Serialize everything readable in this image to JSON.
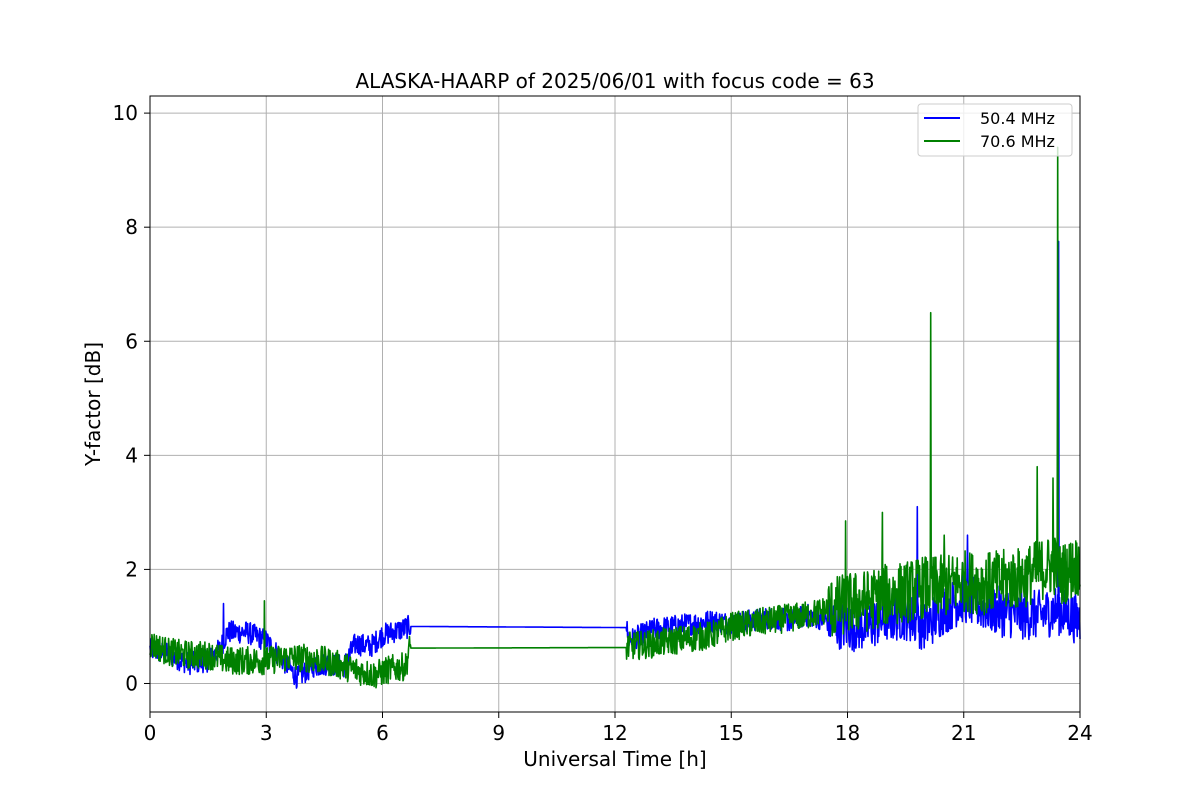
{
  "chart_data": {
    "type": "line",
    "title": "ALASKA-HAARP of 2025/06/01 with focus code = 63",
    "xlabel": "Universal Time [h]",
    "ylabel": "Y-factor [dB]",
    "xlim": [
      0,
      24
    ],
    "ylim": [
      -0.5,
      10.3
    ],
    "xticks": [
      0,
      3,
      6,
      9,
      12,
      15,
      18,
      21,
      24
    ],
    "yticks": [
      0,
      2,
      4,
      6,
      8,
      10
    ],
    "grid": true,
    "legend_position": "top-right",
    "series": [
      {
        "name": "50.4 MHz",
        "color": "#0000ff",
        "points": [
          [
            0,
            0.6
          ],
          [
            0.5,
            0.5
          ],
          [
            1.0,
            0.35
          ],
          [
            1.5,
            0.4
          ],
          [
            1.8,
            0.6
          ],
          [
            2.0,
            0.9
          ],
          [
            2.5,
            0.9
          ],
          [
            3.0,
            0.75
          ],
          [
            3.5,
            0.35
          ],
          [
            3.8,
            0.1
          ],
          [
            4.2,
            0.3
          ],
          [
            4.6,
            0.35
          ],
          [
            5.0,
            0.3
          ],
          [
            5.3,
            0.7
          ],
          [
            5.7,
            0.65
          ],
          [
            6.0,
            0.85
          ],
          [
            6.5,
            0.95
          ],
          [
            6.7,
            1.0
          ],
          [
            12.3,
            0.98
          ],
          [
            12.35,
            0.75
          ],
          [
            13.0,
            0.95
          ],
          [
            13.5,
            1.0
          ],
          [
            14.0,
            1.05
          ],
          [
            14.5,
            1.1
          ],
          [
            15.0,
            1.05
          ],
          [
            15.5,
            1.1
          ],
          [
            16.0,
            1.15
          ],
          [
            16.5,
            1.1
          ],
          [
            17.0,
            1.2
          ],
          [
            17.5,
            1.1
          ],
          [
            18.0,
            1.0
          ],
          [
            18.5,
            1.0
          ],
          [
            19.0,
            1.15
          ],
          [
            19.5,
            1.2
          ],
          [
            20.0,
            1.0
          ],
          [
            20.5,
            1.3
          ],
          [
            21.0,
            1.5
          ],
          [
            21.5,
            1.35
          ],
          [
            22.0,
            1.25
          ],
          [
            22.5,
            1.2
          ],
          [
            23.0,
            1.2
          ],
          [
            23.4,
            1.3
          ],
          [
            24.0,
            1.1
          ]
        ],
        "spikes": [
          [
            1.9,
            1.4
          ],
          [
            19.8,
            3.1
          ],
          [
            21.1,
            2.6
          ],
          [
            23.45,
            7.75
          ]
        ],
        "noise": 0.2
      },
      {
        "name": "70.6 MHz",
        "color": "#008000",
        "points": [
          [
            0,
            0.7
          ],
          [
            0.5,
            0.55
          ],
          [
            1.0,
            0.5
          ],
          [
            1.5,
            0.5
          ],
          [
            2.0,
            0.4
          ],
          [
            2.5,
            0.4
          ],
          [
            3.0,
            0.4
          ],
          [
            3.5,
            0.45
          ],
          [
            4.0,
            0.45
          ],
          [
            4.5,
            0.4
          ],
          [
            5.0,
            0.3
          ],
          [
            5.5,
            0.2
          ],
          [
            5.8,
            0.15
          ],
          [
            6.2,
            0.25
          ],
          [
            6.6,
            0.3
          ],
          [
            6.7,
            0.62
          ],
          [
            12.3,
            0.63
          ],
          [
            12.35,
            0.65
          ],
          [
            13.0,
            0.7
          ],
          [
            13.5,
            0.75
          ],
          [
            14.0,
            0.8
          ],
          [
            14.5,
            0.85
          ],
          [
            15.0,
            1.0
          ],
          [
            15.5,
            1.05
          ],
          [
            16.0,
            1.1
          ],
          [
            16.5,
            1.15
          ],
          [
            17.0,
            1.2
          ],
          [
            17.5,
            1.3
          ],
          [
            18.0,
            1.4
          ],
          [
            18.5,
            1.45
          ],
          [
            19.0,
            1.55
          ],
          [
            19.5,
            1.6
          ],
          [
            20.0,
            1.7
          ],
          [
            20.5,
            1.7
          ],
          [
            21.0,
            1.8
          ],
          [
            21.5,
            1.75
          ],
          [
            22.0,
            1.8
          ],
          [
            22.5,
            1.85
          ],
          [
            23.0,
            2.0
          ],
          [
            23.4,
            2.1
          ],
          [
            23.5,
            1.9
          ],
          [
            24.0,
            2.1
          ]
        ],
        "spikes": [
          [
            2.95,
            1.45
          ],
          [
            17.95,
            2.85
          ],
          [
            18.9,
            3.0
          ],
          [
            20.15,
            6.5
          ],
          [
            20.5,
            2.6
          ],
          [
            22.9,
            3.8
          ],
          [
            23.3,
            3.6
          ],
          [
            23.42,
            9.4
          ]
        ],
        "noise": 0.25
      }
    ]
  }
}
